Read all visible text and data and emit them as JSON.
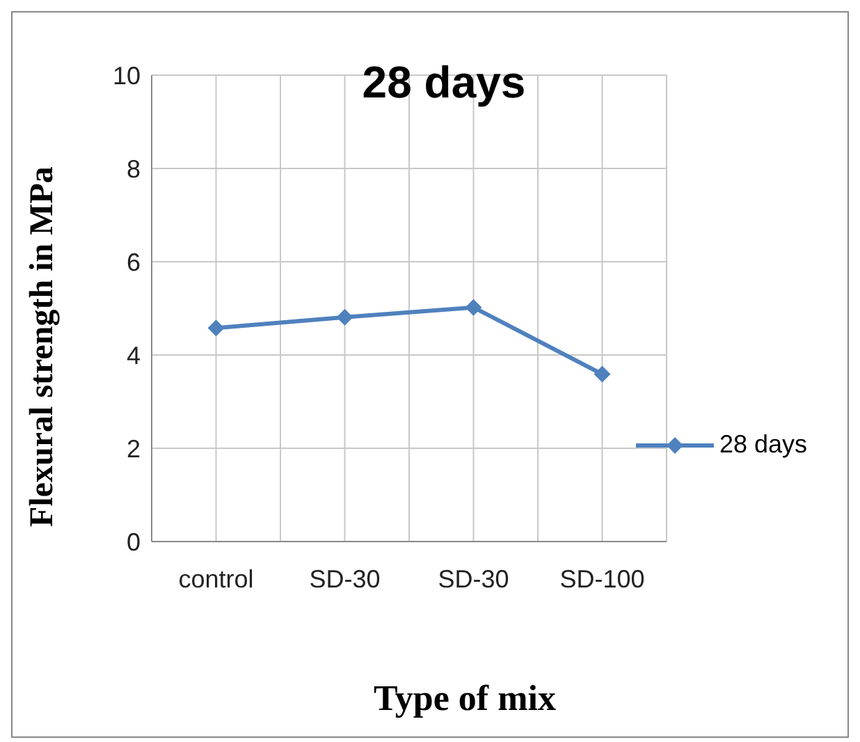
{
  "chart_data": {
    "type": "line",
    "title": "28 days",
    "xlabel": "Type of mix",
    "ylabel": "Flexural strength in MPa",
    "categories": [
      "control",
      "SD-30",
      "SD-30",
      "SD-100"
    ],
    "series": [
      {
        "name": "28 days",
        "color": "#4f81bd",
        "values": [
          4.58,
          4.81,
          5.02,
          3.59
        ]
      }
    ],
    "ylim": [
      0,
      10
    ],
    "yticks": [
      0,
      2,
      4,
      6,
      8,
      10
    ],
    "grid": true,
    "legend": "right",
    "marker": "diamond",
    "line_style": "solid"
  }
}
